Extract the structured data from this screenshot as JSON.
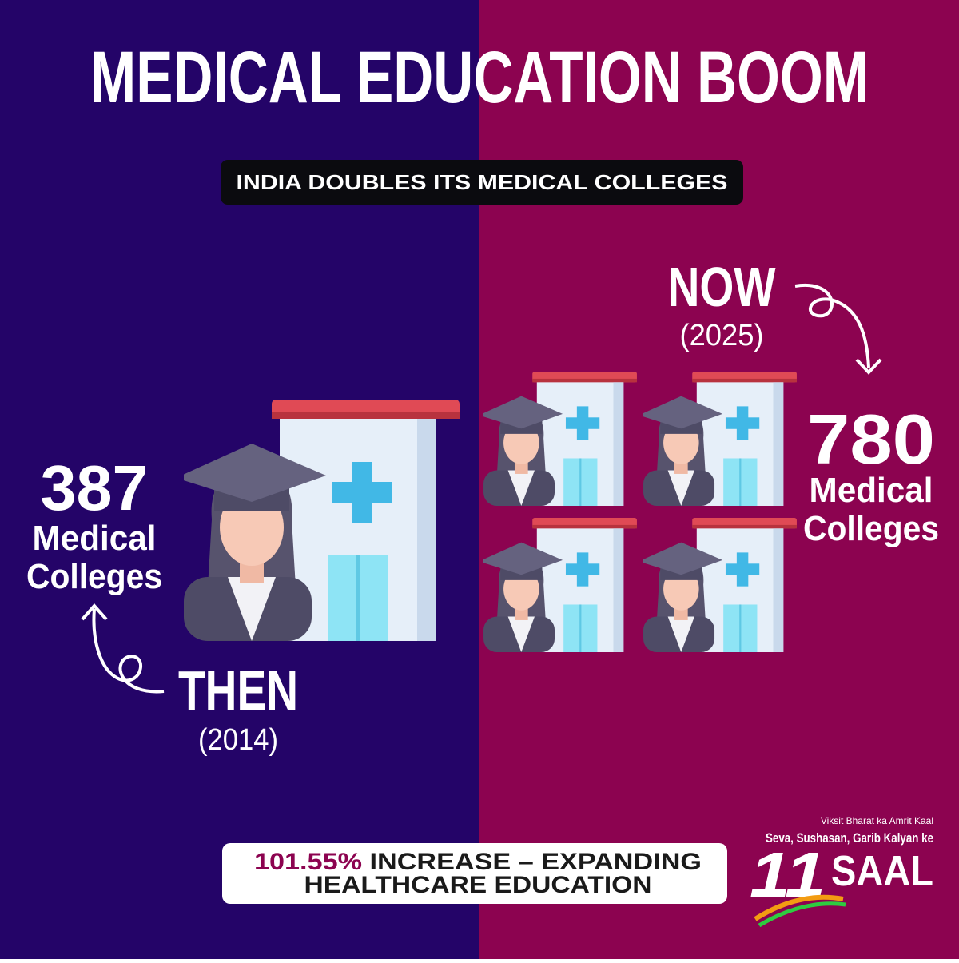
{
  "title": "MEDICAL EDUCATION BOOM",
  "subtitle": "INDIA DOUBLES ITS MEDICAL COLLEGES",
  "then": {
    "label": "THEN",
    "year": "(2014)",
    "count": 387,
    "unit_line1": "Medical",
    "unit_line2": "Colleges"
  },
  "now": {
    "label": "NOW",
    "year": "(2025)",
    "count": 780,
    "unit_line1": "Medical",
    "unit_line2": "Colleges"
  },
  "footer": {
    "highlight": "101.55%",
    "line1": "INCREASE – EXPANDING",
    "line2": "HEALTHCARE EDUCATION"
  },
  "logo": {
    "tagline1": "Viksit Bharat ka Amrit Kaal",
    "tagline2": "Seva, Sushasan, Garib Kalyan ke",
    "number": "11",
    "word": "SAAL"
  }
}
